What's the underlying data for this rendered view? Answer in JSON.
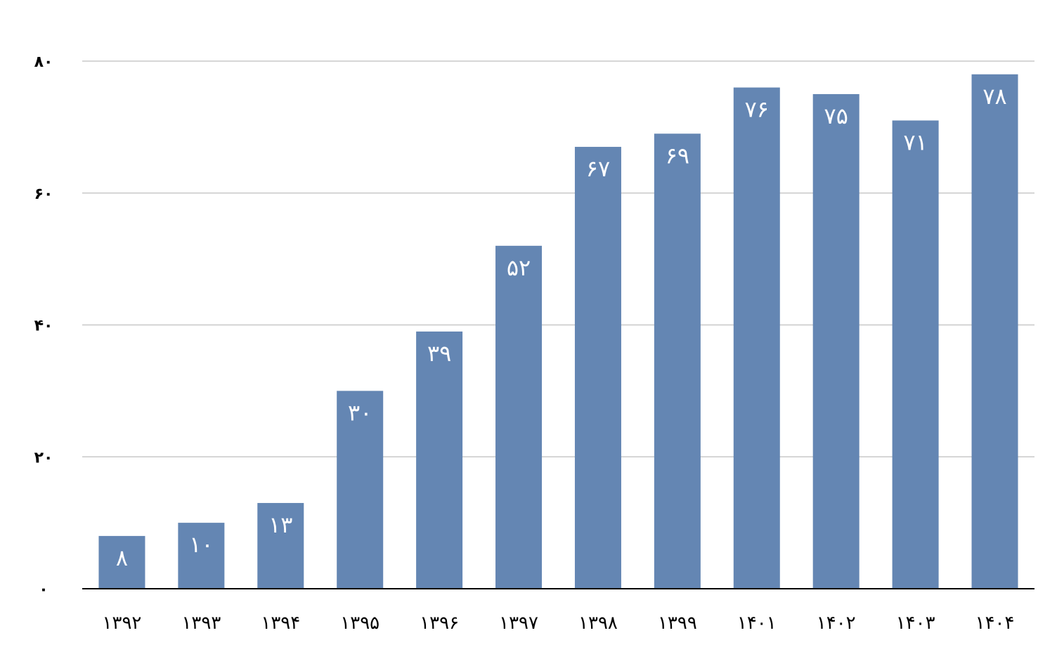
{
  "colors": {
    "bar": "#6486b3",
    "gridline": "#c8c8c8",
    "axis": "#000000",
    "label": "#ffffff",
    "background": "#ffffff"
  },
  "chart_data": {
    "type": "bar",
    "categories": [
      "۱۳۹۲",
      "۱۳۹۳",
      "۱۳۹۴",
      "۱۳۹۵",
      "۱۳۹۶",
      "۱۳۹۷",
      "۱۳۹۸",
      "۱۳۹۹",
      "۱۴۰۱",
      "۱۴۰۲",
      "۱۴۰۳",
      "۱۴۰۴"
    ],
    "values": [
      8,
      10,
      13,
      30,
      39,
      52,
      67,
      69,
      76,
      75,
      71,
      78
    ],
    "data_labels": [
      "۸",
      "۱۰",
      "۱۳",
      "۳۰",
      "۳۹",
      "۵۲",
      "۶۷",
      "۶۹",
      "۷۶",
      "۷۵",
      "۷۱",
      "۷۸"
    ],
    "yticks": [
      0,
      20,
      40,
      60,
      80
    ],
    "ytick_labels": [
      "۰",
      "۲۰",
      "۴۰",
      "۶۰",
      "۸۰"
    ],
    "ylim": [
      0,
      80
    ],
    "grid": true,
    "legend": "none",
    "title": "",
    "xlabel": "",
    "ylabel": ""
  }
}
